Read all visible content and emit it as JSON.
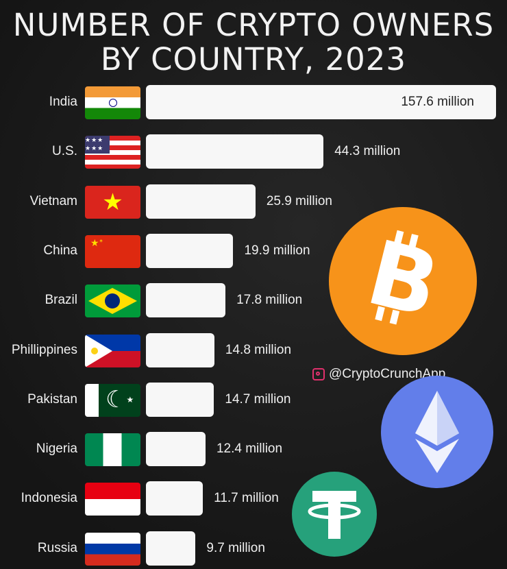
{
  "chart_data": {
    "type": "bar",
    "orientation": "horizontal",
    "title": "NUMBER OF CRYPTO OWNERS BY COUNTRY, 2023",
    "categories": [
      "India",
      "U.S.",
      "Vietnam",
      "China",
      "Brazil",
      "Phillippines",
      "Pakistan",
      "Nigeria",
      "Indonesia",
      "Russia"
    ],
    "values": [
      157.6,
      44.3,
      25.9,
      19.9,
      17.8,
      14.8,
      14.7,
      12.4,
      11.7,
      9.7
    ],
    "unit": "million",
    "data_labels": [
      "157.6 million",
      "44.3 million",
      "25.9 million",
      "19.9 million",
      "17.8 million",
      "14.8 million",
      "14.7 million",
      "12.4 million",
      "11.7 million",
      "9.7 million"
    ],
    "bar_color": "#f7f7f7",
    "grid": false
  },
  "handle": "@CryptoCrunchApp",
  "icons": [
    "bitcoin-logo",
    "ethereum-logo",
    "tether-logo",
    "instagram-icon",
    "country-flags"
  ],
  "colors": {
    "background": "#1c1c1c",
    "bitcoin": "#f7931a",
    "ethereum": "#627eea",
    "tether": "#26a17b"
  }
}
